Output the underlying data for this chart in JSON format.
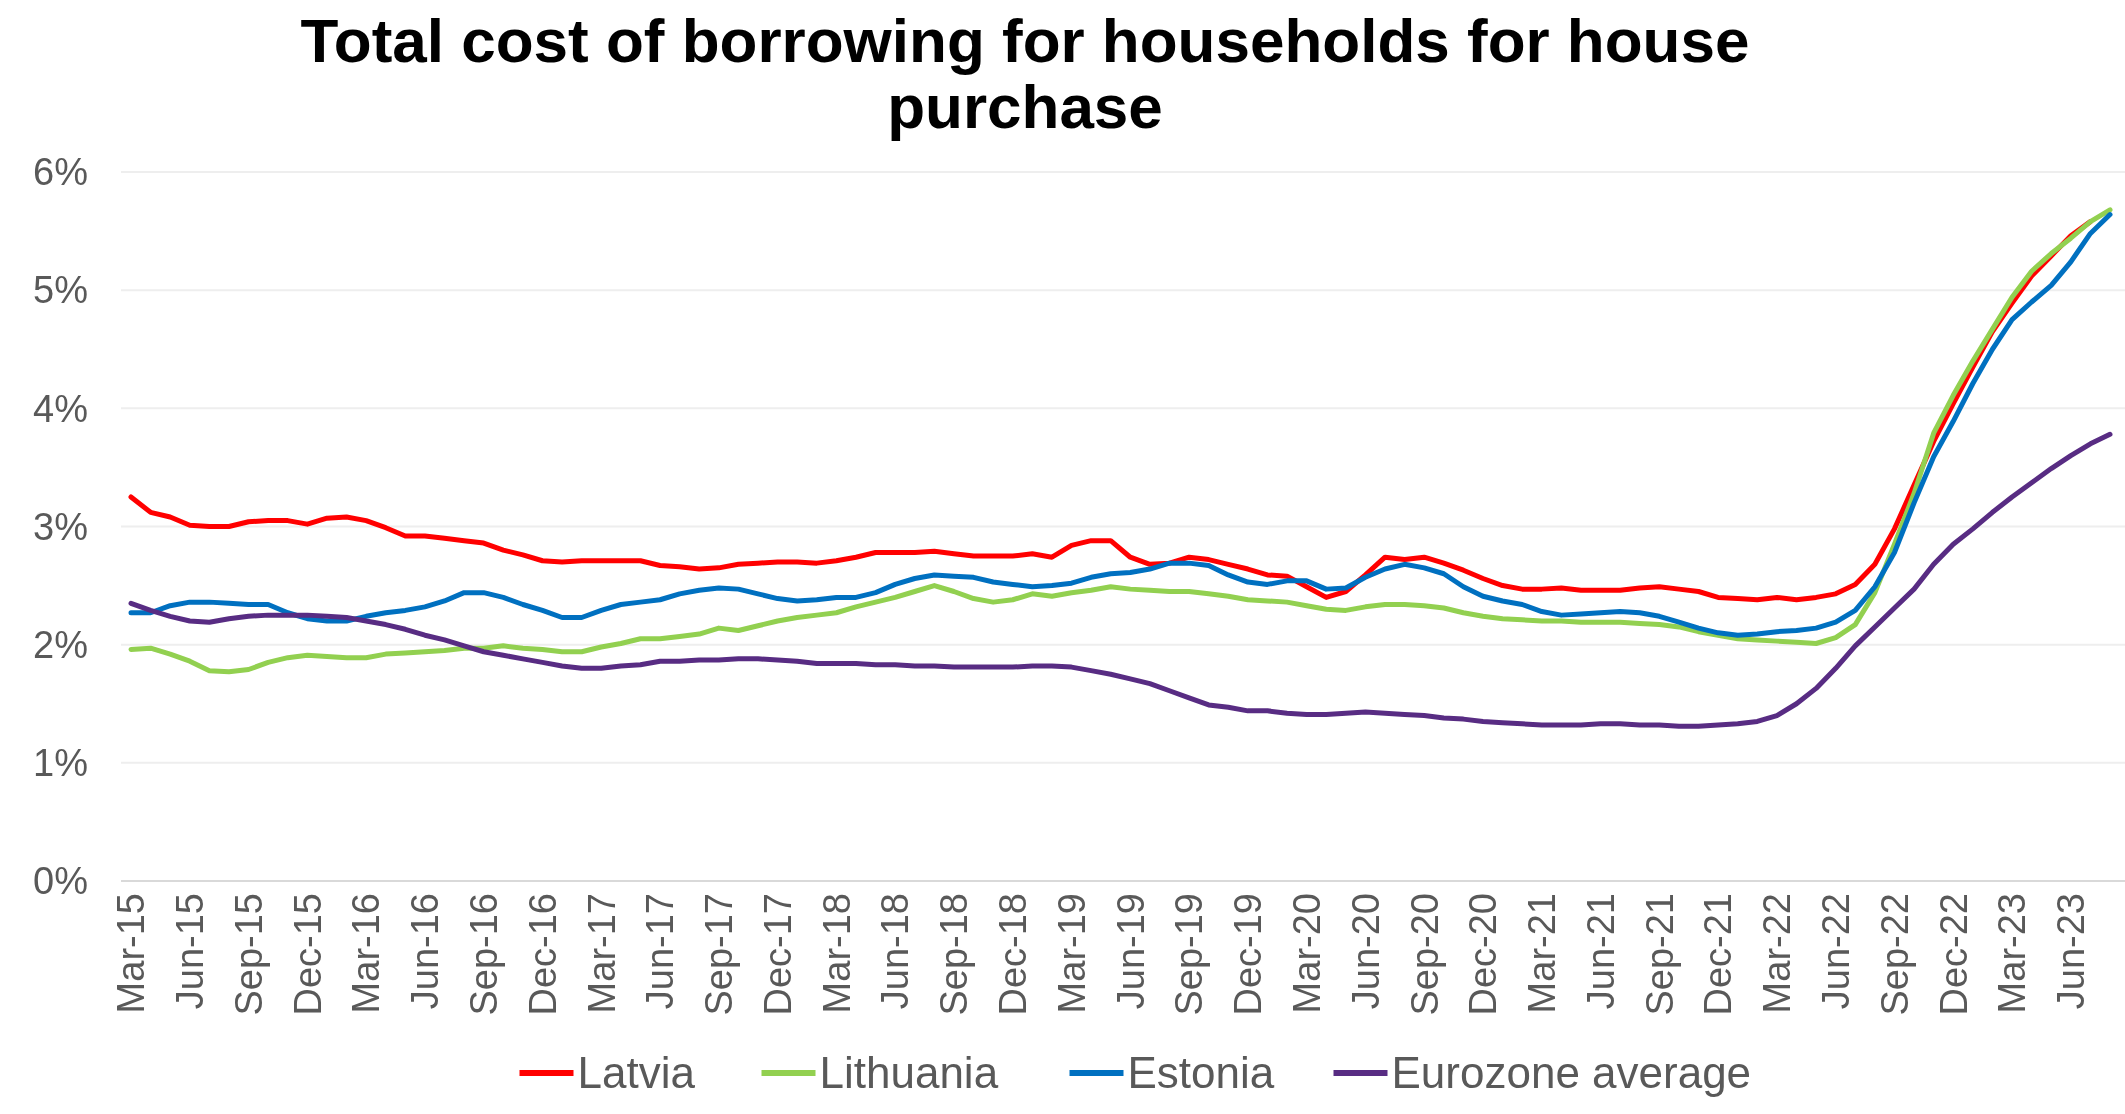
{
  "chart_data": {
    "type": "line",
    "title": "Total cost of borrowing for households for house purchase",
    "categories": [
      "Mar-15",
      null,
      null,
      "Jun-15",
      null,
      null,
      "Sep-15",
      null,
      null,
      "Dec-15",
      null,
      null,
      "Mar-16",
      null,
      null,
      "Jun-16",
      null,
      null,
      "Sep-16",
      null,
      null,
      "Dec-16",
      null,
      null,
      "Mar-17",
      null,
      null,
      "Jun-17",
      null,
      null,
      "Sep-17",
      null,
      null,
      "Dec-17",
      null,
      null,
      "Mar-18",
      null,
      null,
      "Jun-18",
      null,
      null,
      "Sep-18",
      null,
      null,
      "Dec-18",
      null,
      null,
      "Mar-19",
      null,
      null,
      "Jun-19",
      null,
      null,
      "Sep-19",
      null,
      null,
      "Dec-19",
      null,
      null,
      "Mar-20",
      null,
      null,
      "Jun-20",
      null,
      null,
      "Sep-20",
      null,
      null,
      "Dec-20",
      null,
      null,
      "Mar-21",
      null,
      null,
      "Jun-21",
      null,
      null,
      "Sep-21",
      null,
      null,
      "Dec-21",
      null,
      null,
      "Mar-22",
      null,
      null,
      "Jun-22",
      null,
      null,
      "Sep-22",
      null,
      null,
      "Dec-22",
      null,
      null,
      "Mar-23",
      null,
      null,
      "Jun-23",
      null,
      null
    ],
    "series": [
      {
        "name": "Latvia",
        "color": "#ff0000",
        "values": [
          3.25,
          3.12,
          3.08,
          3.01,
          3.0,
          3.0,
          3.04,
          3.05,
          3.05,
          3.02,
          3.07,
          3.08,
          3.05,
          2.99,
          2.92,
          2.92,
          2.9,
          2.88,
          2.86,
          2.8,
          2.76,
          2.71,
          2.7,
          2.71,
          2.71,
          2.71,
          2.71,
          2.67,
          2.66,
          2.64,
          2.65,
          2.68,
          2.69,
          2.7,
          2.7,
          2.69,
          2.71,
          2.74,
          2.78,
          2.78,
          2.78,
          2.79,
          2.77,
          2.75,
          2.75,
          2.75,
          2.77,
          2.74,
          2.84,
          2.88,
          2.88,
          2.74,
          2.68,
          2.69,
          2.74,
          2.72,
          2.68,
          2.64,
          2.59,
          2.58,
          2.49,
          2.4,
          2.45,
          2.59,
          2.74,
          2.72,
          2.74,
          2.69,
          2.63,
          2.56,
          2.5,
          2.47,
          2.47,
          2.48,
          2.46,
          2.46,
          2.46,
          2.48,
          2.49,
          2.47,
          2.45,
          2.4,
          2.39,
          2.38,
          2.4,
          2.38,
          2.4,
          2.43,
          2.51,
          2.68,
          2.98,
          3.35,
          3.72,
          4.04,
          4.35,
          4.65,
          4.89,
          5.12,
          5.29,
          5.46,
          5.58,
          null
        ]
      },
      {
        "name": "Lithuania",
        "color": "#92d050",
        "values": [
          1.96,
          1.97,
          1.92,
          1.86,
          1.78,
          1.77,
          1.79,
          1.85,
          1.89,
          1.91,
          1.9,
          1.89,
          1.89,
          1.92,
          1.93,
          1.94,
          1.95,
          1.97,
          1.97,
          1.99,
          1.97,
          1.96,
          1.94,
          1.94,
          1.98,
          2.01,
          2.05,
          2.05,
          2.07,
          2.09,
          2.14,
          2.12,
          2.16,
          2.2,
          2.23,
          2.25,
          2.27,
          2.32,
          2.36,
          2.4,
          2.45,
          2.5,
          2.45,
          2.39,
          2.36,
          2.38,
          2.43,
          2.41,
          2.44,
          2.46,
          2.49,
          2.47,
          2.46,
          2.45,
          2.45,
          2.43,
          2.41,
          2.38,
          2.37,
          2.36,
          2.33,
          2.3,
          2.29,
          2.32,
          2.34,
          2.34,
          2.33,
          2.31,
          2.27,
          2.24,
          2.22,
          2.21,
          2.2,
          2.2,
          2.19,
          2.19,
          2.19,
          2.18,
          2.17,
          2.15,
          2.11,
          2.08,
          2.05,
          2.04,
          2.03,
          2.02,
          2.01,
          2.06,
          2.17,
          2.44,
          2.85,
          3.28,
          3.79,
          4.11,
          4.4,
          4.67,
          4.94,
          5.16,
          5.31,
          5.44,
          5.58,
          5.68
        ]
      },
      {
        "name": "Estonia",
        "color": "#0070c0",
        "values": [
          2.27,
          2.27,
          2.33,
          2.36,
          2.36,
          2.35,
          2.34,
          2.34,
          2.27,
          2.22,
          2.2,
          2.2,
          2.24,
          2.27,
          2.29,
          2.32,
          2.37,
          2.44,
          2.44,
          2.4,
          2.34,
          2.29,
          2.23,
          2.23,
          2.29,
          2.34,
          2.36,
          2.38,
          2.43,
          2.46,
          2.48,
          2.47,
          2.43,
          2.39,
          2.37,
          2.38,
          2.4,
          2.4,
          2.44,
          2.51,
          2.56,
          2.59,
          2.58,
          2.57,
          2.53,
          2.51,
          2.49,
          2.5,
          2.52,
          2.57,
          2.6,
          2.61,
          2.64,
          2.69,
          2.69,
          2.67,
          2.59,
          2.53,
          2.51,
          2.54,
          2.54,
          2.47,
          2.48,
          2.57,
          2.64,
          2.68,
          2.65,
          2.6,
          2.49,
          2.41,
          2.37,
          2.34,
          2.28,
          2.25,
          2.26,
          2.27,
          2.28,
          2.27,
          2.24,
          2.19,
          2.14,
          2.1,
          2.08,
          2.09,
          2.11,
          2.12,
          2.14,
          2.19,
          2.29,
          2.49,
          2.78,
          3.2,
          3.59,
          3.89,
          4.21,
          4.5,
          4.75,
          4.9,
          5.04,
          5.24,
          5.48,
          5.64
        ]
      },
      {
        "name": "Eurozone average",
        "color": "#582c83",
        "values": [
          2.35,
          2.29,
          2.24,
          2.2,
          2.19,
          2.22,
          2.24,
          2.25,
          2.25,
          2.25,
          2.24,
          2.23,
          2.2,
          2.17,
          2.13,
          2.08,
          2.04,
          1.99,
          1.94,
          1.91,
          1.88,
          1.85,
          1.82,
          1.8,
          1.8,
          1.82,
          1.83,
          1.86,
          1.86,
          1.87,
          1.87,
          1.88,
          1.88,
          1.87,
          1.86,
          1.84,
          1.84,
          1.84,
          1.83,
          1.83,
          1.82,
          1.82,
          1.81,
          1.81,
          1.81,
          1.81,
          1.82,
          1.82,
          1.81,
          1.78,
          1.75,
          1.71,
          1.67,
          1.61,
          1.55,
          1.49,
          1.47,
          1.44,
          1.44,
          1.42,
          1.41,
          1.41,
          1.42,
          1.43,
          1.42,
          1.41,
          1.4,
          1.38,
          1.37,
          1.35,
          1.34,
          1.33,
          1.32,
          1.32,
          1.32,
          1.33,
          1.33,
          1.32,
          1.32,
          1.31,
          1.31,
          1.32,
          1.33,
          1.35,
          1.4,
          1.5,
          1.63,
          1.8,
          1.99,
          2.15,
          2.31,
          2.47,
          2.68,
          2.85,
          2.98,
          3.12,
          3.25,
          3.37,
          3.49,
          3.6,
          3.7,
          3.78
        ]
      }
    ],
    "ylim": [
      0,
      6
    ],
    "yticks": [
      {
        "value": 0,
        "label": "0%"
      },
      {
        "value": 1,
        "label": "1%"
      },
      {
        "value": 2,
        "label": "2%"
      },
      {
        "value": 3,
        "label": "3%"
      },
      {
        "value": 4,
        "label": "4%"
      },
      {
        "value": 5,
        "label": "5%"
      },
      {
        "value": 6,
        "label": "6%"
      }
    ],
    "grid": "y",
    "legend": "bottom"
  }
}
